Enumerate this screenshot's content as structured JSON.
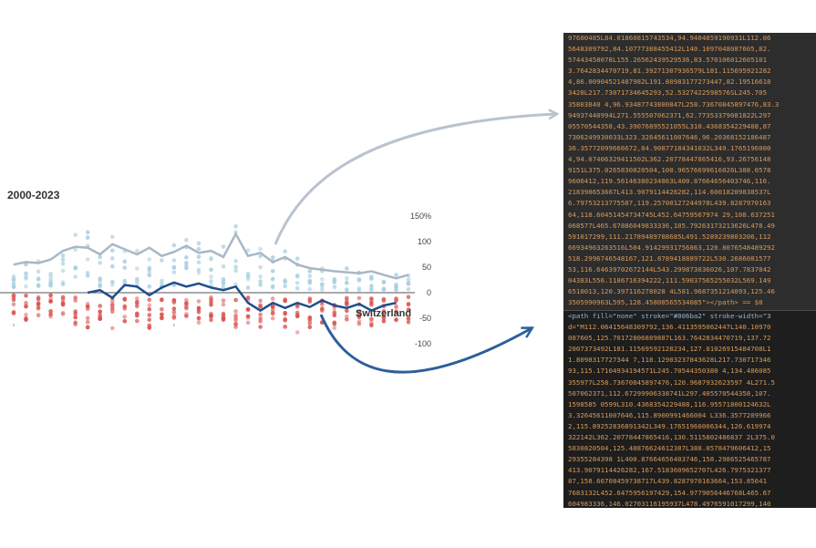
{
  "colors": {
    "positive_dots": "#a8cfe0",
    "negative_dots": "#d9534f",
    "mean_line": "#a9b7c7",
    "switzerland_line": "#1f4e8c",
    "arrow_grey": "#b9c3cf",
    "arrow_blue": "#2d5f99",
    "code_bg_top": "#2d2d2d",
    "code_bg_bottom": "#1e1e1e",
    "code_text": "#d79a5a",
    "code_tag": "#8fb7d8"
  },
  "chart_data": {
    "type": "scatter",
    "title": "2000-2023",
    "yticks": [
      "150%",
      "100",
      "50",
      "0",
      "-50",
      "-100"
    ],
    "ylim": [
      -110,
      160
    ],
    "x": [
      1,
      2,
      3,
      4,
      5,
      6,
      7,
      8,
      9,
      10,
      11,
      12,
      13,
      14,
      15,
      16,
      17,
      18,
      19,
      20,
      21,
      22,
      23,
      24,
      25,
      26,
      27,
      28,
      29,
      30,
      31,
      32,
      33
    ],
    "series": [
      {
        "name": "",
        "role": "average",
        "values": [
          55,
          60,
          58,
          65,
          82,
          90,
          88,
          75,
          95,
          85,
          75,
          88,
          72,
          80,
          92,
          78,
          82,
          70,
          115,
          72,
          78,
          60,
          70,
          55,
          48,
          45,
          42,
          40,
          38,
          42,
          35,
          28,
          35
        ]
      },
      {
        "name": "Switzerland",
        "role": "highlight",
        "start_index": 6,
        "values": [
          0,
          5,
          -10,
          15,
          12,
          -5,
          10,
          20,
          12,
          18,
          10,
          5,
          12,
          -20,
          -35,
          -20,
          -30,
          -20,
          -28,
          -15,
          -25,
          -30,
          -22,
          -35,
          -25,
          -20
        ]
      }
    ],
    "scatter": {
      "positive_ranges": [
        [
          10,
          55
        ],
        [
          8,
          60
        ],
        [
          10,
          65
        ],
        [
          12,
          70
        ],
        [
          15,
          100
        ],
        [
          15,
          120
        ],
        [
          15,
          130
        ],
        [
          12,
          110
        ],
        [
          15,
          125
        ],
        [
          12,
          100
        ],
        [
          10,
          110
        ],
        [
          12,
          115
        ],
        [
          10,
          95
        ],
        [
          10,
          105
        ],
        [
          12,
          120
        ],
        [
          10,
          100
        ],
        [
          12,
          108
        ],
        [
          10,
          95
        ],
        [
          12,
          150
        ],
        [
          8,
          95
        ],
        [
          10,
          105
        ],
        [
          8,
          80
        ],
        [
          8,
          90
        ],
        [
          5,
          70
        ],
        [
          5,
          60
        ],
        [
          5,
          55
        ],
        [
          5,
          50
        ],
        [
          5,
          50
        ],
        [
          5,
          48
        ],
        [
          5,
          50
        ],
        [
          5,
          45
        ],
        [
          4,
          40
        ],
        [
          5,
          45
        ]
      ],
      "negative_ranges": [
        [
          -5,
          -50
        ],
        [
          -5,
          -55
        ],
        [
          -5,
          -50
        ],
        [
          -5,
          -55
        ],
        [
          -8,
          -60
        ],
        [
          -8,
          -65
        ],
        [
          -8,
          -70
        ],
        [
          -8,
          -60
        ],
        [
          -8,
          -70
        ],
        [
          -8,
          -65
        ],
        [
          -8,
          -60
        ],
        [
          -8,
          -70
        ],
        [
          -8,
          -60
        ],
        [
          -8,
          -62
        ],
        [
          -8,
          -65
        ],
        [
          -8,
          -60
        ],
        [
          -8,
          -65
        ],
        [
          -8,
          -60
        ],
        [
          -8,
          -72
        ],
        [
          -8,
          -60
        ],
        [
          -10,
          -70
        ],
        [
          -10,
          -75
        ],
        [
          -10,
          -72
        ],
        [
          -10,
          -80
        ],
        [
          -10,
          -70
        ],
        [
          -10,
          -65
        ],
        [
          -10,
          -70
        ],
        [
          -10,
          -65
        ],
        [
          -10,
          -62
        ],
        [
          -10,
          -65
        ],
        [
          -8,
          -60
        ],
        [
          -8,
          -58
        ],
        [
          -8,
          -60
        ]
      ]
    }
  },
  "code_top": [
    "97680485L84.01860815743534,94.9404859190931L112.06",
    "5648309792,84.10777388455412L140.1097048087605,82.",
    "57443458078L155.26562439529536,83.570106012605101",
    "3.7642834470719,81.39271307936579L181.115695921282",
    "4,86.00904521487982L191.80983177273447,82.19516618",
    "3428L217.73071734645293,52.5327422598576SL245.705",
    "35803840 4,96.93487743800847L258.73670845897476,83.3",
    "94937440994L271.555507062371,62.77353379081822L297",
    "05570544358,43.39076895521055L310.4368354229488,87",
    "7306249930033L323.32645611007646,96.20368152186487",
    "36.35772099666672,84.90877184341032L349.1765196000",
    "4,94.07406329411502L362.20778447865416,93.26756148",
    "9151L375.0265830820504,100.96576699616026L388.0578",
    "9606412,119.56146380234863L400.87664656403746,116.",
    "218398653667L413.9079114426282,114.60018209838537L",
    "6.79753213775587,119.25700127244978L439.8287970163",
    "64,118.60451454734745L452.64759567974 29,108.637251",
    "068577L465.67886049833336,105.79263173213626L478.49",
    "591017299,111.21789489788685L491.5289239803206,112",
    "66934963263516L504.91429931756863,120.8076548489292",
    "518.2996746548167,121.8789418889722L530.2686081577",
    "53,116.64639702672144L543.299873036026,107.7837842",
    "04383L556.1186716394222,111.59037565255032L569.149",
    "6518013,120.397116278028 4L581.9687351214093,125.46",
    "3505990963L595,128.45808565534085\"></path> == $0"
  ],
  "code_bottom": [
    "<path fill=\"none\" stroke=\"#006ba2\" stroke-width=\"3",
    "d=\"M112.06415648309792,136.4113595062447L140.10970",
    "087605,125.70172806889887L163.7642834470719,137.72",
    "2007373492L181.11569592128234,127.01026915484708L1",
    "1.8098317727344 7,118.12903237843628L217.730717346",
    "93,115.17104934194571L245.70544350380 4,134.486085",
    "355977L258.73670845897476,120.9687932623597 4L271.5",
    "507062371,112.67299906338741L297.405570544358,107.",
    "1598585 0599L310.4368354229488,116.95571800124632L",
    "3.32645611007646,115.8900991466004 L336.3577209966",
    "2,115.89252836891342L349.17651960006344,126.619974",
    "322142L362.20778447865416,130.5115802486837 2L375.0",
    "5830820504,125.48876624612387L388.0578479606412,15",
    "29355284398 1L400.87664656403746,158.2986525465787",
    "413.9079114426282,167.5183609652707L426.7975321377",
    "87,158.66708459738717L439.8287970163664,153.85641",
    "7683132L452.6475956197429,154.9779056446768L465.67",
    "604983336,146.02703116195937L478.4976591017299,140",
    "74242780433 38L491.5289239803206,149.2408922820838L",
    "4.91429931756863,149.9461764936359L518.29967465481",
    "7,152.53572747931804L530.2686081574353,158.0735446",
    "23866L543.299873036026,151.3761786952352L556.11867"
  ]
}
